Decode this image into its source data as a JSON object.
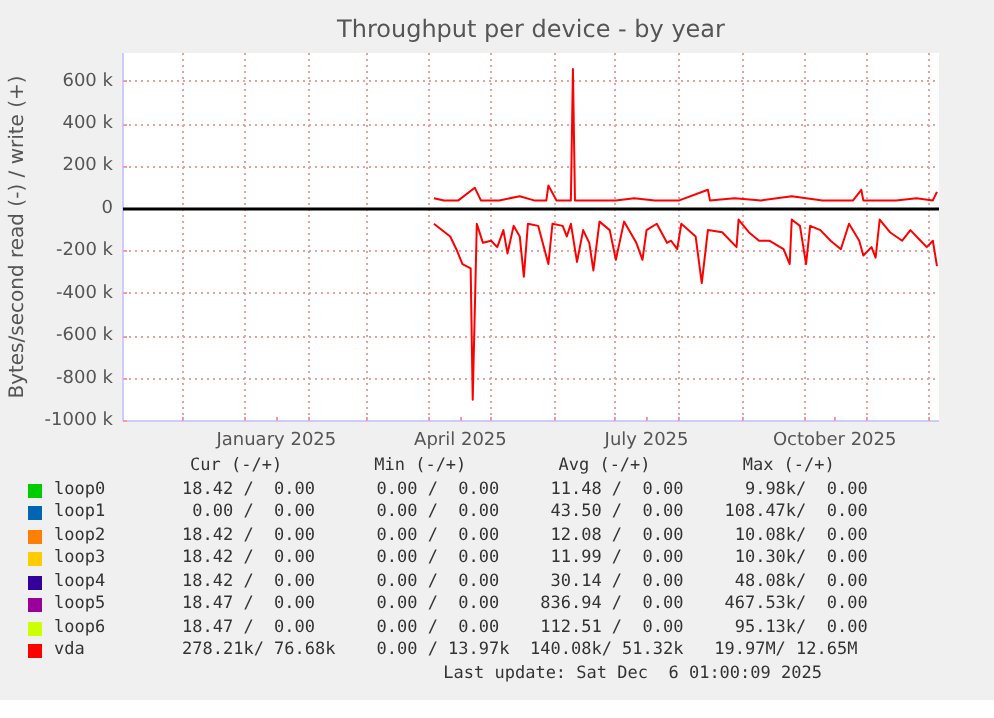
{
  "chart_data": {
    "type": "line",
    "title": "Throughput per device - by year",
    "ylabel": "Bytes/second read (-) / write (+)",
    "xlim": [
      "2024-11-02",
      "2025-12-06"
    ],
    "ylim": [
      -1000000,
      735000
    ],
    "xticks": [
      {
        "value": "2024-12-01",
        "label": null
      },
      {
        "value": "2025-01-01",
        "label": null
      },
      {
        "value": "2025-01-16",
        "label": "January 2025"
      },
      {
        "value": "2025-02-01",
        "label": null
      },
      {
        "value": "2025-03-01",
        "label": null
      },
      {
        "value": "2025-04-01",
        "label": null
      },
      {
        "value": "2025-04-16",
        "label": "April 2025"
      },
      {
        "value": "2025-05-01",
        "label": null
      },
      {
        "value": "2025-06-01",
        "label": null
      },
      {
        "value": "2025-07-01",
        "label": null
      },
      {
        "value": "2025-07-16",
        "label": "July 2025"
      },
      {
        "value": "2025-08-01",
        "label": null
      },
      {
        "value": "2025-09-01",
        "label": null
      },
      {
        "value": "2025-10-01",
        "label": null
      },
      {
        "value": "2025-10-16",
        "label": "October 2025"
      },
      {
        "value": "2025-11-01",
        "label": null
      },
      {
        "value": "2025-12-01",
        "label": null
      }
    ],
    "yticks": [
      {
        "value": -1000000,
        "label": "-1000 k"
      },
      {
        "value": -800000,
        "label": "-800 k"
      },
      {
        "value": -600000,
        "label": "-600 k"
      },
      {
        "value": -400000,
        "label": "-400 k"
      },
      {
        "value": -200000,
        "label": "-200 k"
      },
      {
        "value": 0,
        "label": "0"
      },
      {
        "value": 200000,
        "label": "200 k"
      },
      {
        "value": 400000,
        "label": "400 k"
      },
      {
        "value": 600000,
        "label": "600 k"
      }
    ],
    "grid": true,
    "legend": "bottom",
    "ref_lines": [
      {
        "axis": "y",
        "value": 0,
        "color": "#000000"
      }
    ],
    "series": [
      {
        "name": "loop0",
        "color": "#00cc00"
      },
      {
        "name": "loop1",
        "color": "#0066b3"
      },
      {
        "name": "loop2",
        "color": "#ff8000"
      },
      {
        "name": "loop3",
        "color": "#ffcc00"
      },
      {
        "name": "loop4",
        "color": "#330099"
      },
      {
        "name": "loop5",
        "color": "#990099"
      },
      {
        "name": "loop6",
        "color": "#ccff00"
      },
      {
        "name": "vda",
        "color": "#ff0000",
        "x": [
          "2025-04-03",
          "2025-04-08",
          "2025-04-15",
          "2025-04-23",
          "2025-04-26",
          "2025-05-05",
          "2025-05-15",
          "2025-05-22",
          "2025-05-28",
          "2025-05-29",
          "2025-06-02",
          "2025-06-09",
          "2025-06-10",
          "2025-06-11",
          "2025-06-20",
          "2025-07-01",
          "2025-07-10",
          "2025-07-20",
          "2025-08-01",
          "2025-08-15",
          "2025-08-16",
          "2025-08-28",
          "2025-09-10",
          "2025-09-25",
          "2025-10-10",
          "2025-10-25",
          "2025-10-29",
          "2025-10-30",
          "2025-11-15",
          "2025-11-25",
          "2025-12-03",
          "2025-12-05"
        ],
        "values": [
          50000,
          40000,
          40000,
          100000,
          40000,
          40000,
          60000,
          40000,
          40000,
          110000,
          40000,
          40000,
          660000,
          40000,
          40000,
          40000,
          50000,
          40000,
          40000,
          90000,
          40000,
          50000,
          40000,
          60000,
          40000,
          40000,
          90000,
          40000,
          40000,
          50000,
          40000,
          80000
        ]
      },
      {
        "color": "#ff0000",
        "x": [
          "2025-04-03",
          "2025-04-11",
          "2025-04-14",
          "2025-04-17",
          "2025-04-21",
          "2025-04-22",
          "2025-04-24",
          "2025-04-27",
          "2025-05-01",
          "2025-05-04",
          "2025-05-07",
          "2025-05-09",
          "2025-05-12",
          "2025-05-15",
          "2025-05-17",
          "2025-05-19",
          "2025-05-24",
          "2025-05-29",
          "2025-05-31",
          "2025-06-05",
          "2025-06-07",
          "2025-06-09",
          "2025-06-12",
          "2025-06-15",
          "2025-06-18",
          "2025-06-20",
          "2025-06-23",
          "2025-06-28",
          "2025-07-01",
          "2025-07-05",
          "2025-07-11",
          "2025-07-14",
          "2025-07-16",
          "2025-07-21",
          "2025-07-26",
          "2025-07-28",
          "2025-07-31",
          "2025-08-02",
          "2025-08-09",
          "2025-08-12",
          "2025-08-15",
          "2025-08-22",
          "2025-08-29",
          "2025-08-30",
          "2025-09-04",
          "2025-09-09",
          "2025-09-14",
          "2025-09-21",
          "2025-09-24",
          "2025-09-25",
          "2025-09-29",
          "2025-10-02",
          "2025-10-04",
          "2025-10-09",
          "2025-10-14",
          "2025-10-19",
          "2025-10-23",
          "2025-10-28",
          "2025-10-30",
          "2025-11-03",
          "2025-11-05",
          "2025-11-07",
          "2025-11-12",
          "2025-11-18",
          "2025-11-22",
          "2025-11-27",
          "2025-11-30",
          "2025-12-03",
          "2025-12-05"
        ],
        "values": [
          -70000,
          -130000,
          -190000,
          -260000,
          -280000,
          -900000,
          -70000,
          -160000,
          -150000,
          -180000,
          -100000,
          -210000,
          -80000,
          -130000,
          -320000,
          -70000,
          -80000,
          -260000,
          -70000,
          -80000,
          -130000,
          -70000,
          -250000,
          -100000,
          -160000,
          -290000,
          -60000,
          -100000,
          -240000,
          -60000,
          -160000,
          -240000,
          -100000,
          -70000,
          -160000,
          -150000,
          -190000,
          -70000,
          -130000,
          -350000,
          -100000,
          -110000,
          -180000,
          -50000,
          -110000,
          -150000,
          -150000,
          -190000,
          -260000,
          -50000,
          -80000,
          -260000,
          -80000,
          -100000,
          -150000,
          -190000,
          -70000,
          -150000,
          -220000,
          -180000,
          -230000,
          -50000,
          -110000,
          -150000,
          -100000,
          -150000,
          -180000,
          -150000,
          -270000
        ]
      }
    ],
    "annotations": [
      "Cur (-/+)         Min (-/+)         Avg (-/+)         Max (-/+)",
      "18.42 /  0.00      0.00 /  0.00     11.48 /  0.00      9.98k/  0.00",
      " 0.00 /  0.00      0.00 /  0.00     43.50 /  0.00    108.47k/  0.00",
      "18.42 /  0.00      0.00 /  0.00     12.08 /  0.00     10.08k/  0.00",
      "18.42 /  0.00      0.00 /  0.00     11.99 /  0.00     10.30k/  0.00",
      "18.42 /  0.00      0.00 /  0.00     30.14 /  0.00     48.08k/  0.00",
      "18.47 /  0.00      0.00 /  0.00    836.94 /  0.00    467.53k/  0.00",
      "18.47 /  0.00      0.00 /  0.00    112.51 /  0.00     95.13k/  0.00",
      "278.21k/ 76.68k    0.00 / 13.97k  140.08k/ 51.32k   19.97M/ 12.65M",
      "Last update: Sat Dec  6 01:00:09 2025"
    ]
  }
}
